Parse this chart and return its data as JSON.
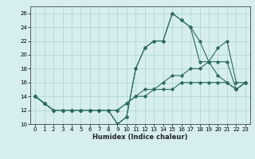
{
  "xlabel": "Humidex (Indice chaleur)",
  "xlim": [
    -0.5,
    23.5
  ],
  "ylim": [
    10,
    27
  ],
  "xticks": [
    0,
    1,
    2,
    3,
    4,
    5,
    6,
    7,
    8,
    9,
    10,
    11,
    12,
    13,
    14,
    15,
    16,
    17,
    18,
    19,
    20,
    21,
    22,
    23
  ],
  "yticks": [
    10,
    12,
    14,
    16,
    18,
    20,
    22,
    24,
    26
  ],
  "bg_color": "#d6eef0",
  "grid_color": "#b0d8d0",
  "line_color": "#2e6b60",
  "lines": [
    {
      "x": [
        0,
        1,
        2,
        3,
        4,
        5,
        6,
        7,
        8,
        9,
        10,
        11,
        12,
        13,
        14,
        15,
        16,
        17,
        18,
        19,
        20,
        21,
        22,
        23
      ],
      "y": [
        14,
        13,
        12,
        12,
        12,
        12,
        12,
        12,
        12,
        10,
        11,
        18,
        21,
        22,
        22,
        26,
        25,
        24,
        22,
        19,
        17,
        16,
        15,
        16
      ]
    },
    {
      "x": [
        0,
        1,
        2,
        3,
        4,
        5,
        6,
        7,
        8,
        9,
        10,
        11,
        12,
        13,
        14,
        15,
        16,
        17,
        18,
        19,
        20,
        21,
        22,
        23
      ],
      "y": [
        14,
        13,
        12,
        12,
        12,
        12,
        12,
        12,
        12,
        10,
        11,
        18,
        21,
        22,
        22,
        26,
        25,
        24,
        19,
        19,
        21,
        22,
        16,
        16
      ]
    },
    {
      "x": [
        0,
        1,
        2,
        3,
        4,
        5,
        6,
        7,
        8,
        9,
        10,
        11,
        12,
        13,
        14,
        15,
        16,
        17,
        18,
        19,
        20,
        21,
        22,
        23
      ],
      "y": [
        14,
        13,
        12,
        12,
        12,
        12,
        12,
        12,
        12,
        12,
        13,
        14,
        15,
        15,
        16,
        17,
        17,
        18,
        18,
        19,
        19,
        19,
        15,
        16
      ]
    },
    {
      "x": [
        0,
        1,
        2,
        3,
        4,
        5,
        6,
        7,
        8,
        9,
        10,
        11,
        12,
        13,
        14,
        15,
        16,
        17,
        18,
        19,
        20,
        21,
        22,
        23
      ],
      "y": [
        14,
        13,
        12,
        12,
        12,
        12,
        12,
        12,
        12,
        12,
        13,
        14,
        14,
        15,
        15,
        15,
        16,
        16,
        16,
        16,
        16,
        16,
        15,
        16
      ]
    }
  ]
}
